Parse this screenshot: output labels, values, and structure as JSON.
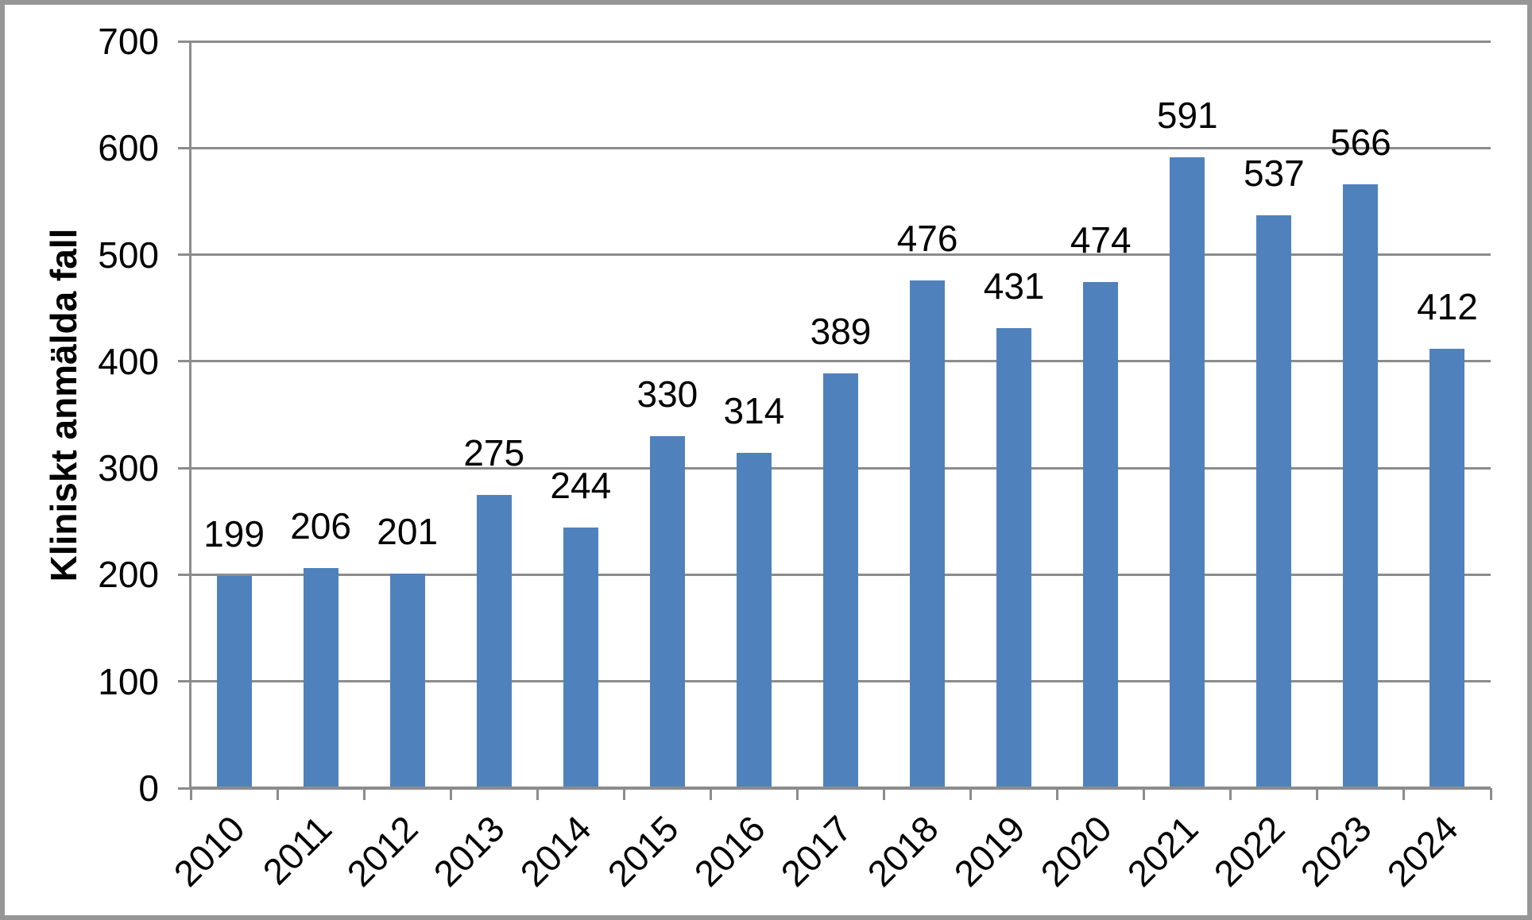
{
  "chart_data": {
    "type": "bar",
    "title": "",
    "xlabel": "",
    "ylabel": "Kliniskt anmälda fall",
    "categories": [
      "2010",
      "2011",
      "2012",
      "2013",
      "2014",
      "2015",
      "2016",
      "2017",
      "2018",
      "2019",
      "2020",
      "2021",
      "2022",
      "2023",
      "2024"
    ],
    "values": [
      199,
      206,
      201,
      275,
      244,
      330,
      314,
      389,
      476,
      431,
      474,
      591,
      537,
      566,
      412
    ],
    "data_labels_shown": true,
    "yticks": [
      0,
      100,
      200,
      300,
      400,
      500,
      600,
      700
    ],
    "ylim": [
      0,
      700
    ],
    "grid": "horizontal",
    "legend_position": "none",
    "colors": {
      "bar_fill": "#4F81BD",
      "gridline": "#8C8C8C",
      "axis": "#8C8C8C",
      "frame_border": "#969696",
      "text": "#000000",
      "background": "#FFFFFF"
    }
  }
}
